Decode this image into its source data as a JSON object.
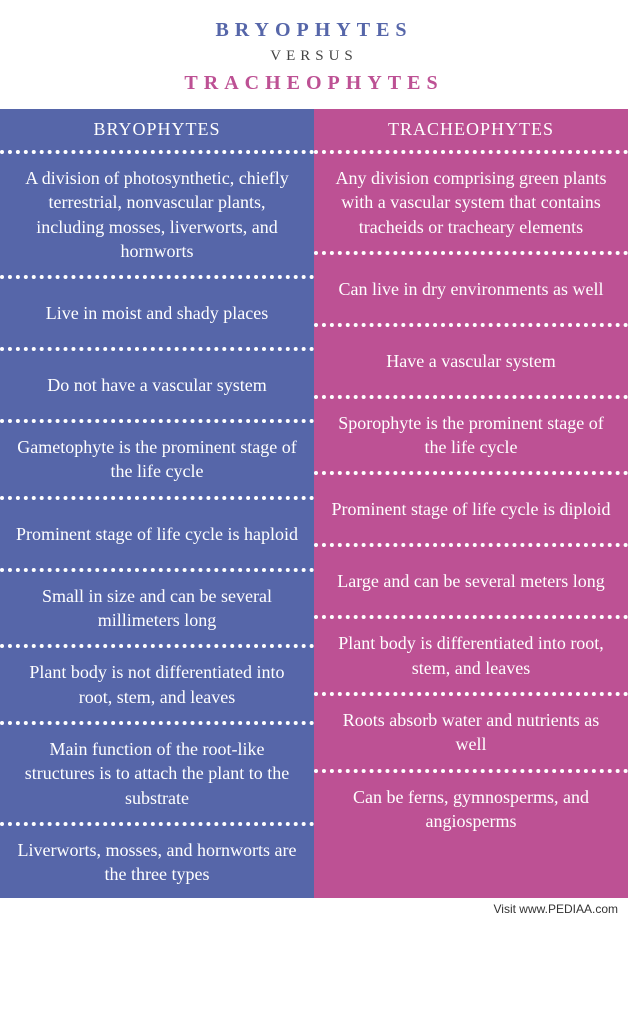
{
  "title": {
    "left_text": "BRYOPHYTES",
    "left_color": "#5666a9",
    "versus": "VERSUS",
    "right_text": "TRACHEOPHYTES",
    "right_color": "#bd5194"
  },
  "columns": {
    "left": {
      "header": "BRYOPHYTES",
      "bg_color": "#5666a9",
      "cells": [
        "A division of photosynthetic, chiefly terrestrial, nonvascular plants, including mosses, liverworts, and hornworts",
        "Live in moist and shady places",
        "Do not have a vascular system",
        "Gametophyte is the prominent stage of the life cycle",
        "Prominent stage of life cycle is haploid",
        "Small in size and can be several millimeters long",
        "Plant body is not differentiated into root, stem, and leaves",
        "Main function of the root-like structures is to attach the plant to the substrate",
        "Liverworts, mosses, and hornworts are the three types"
      ]
    },
    "right": {
      "header": "TRACHEOPHYTES",
      "bg_color": "#bd5194",
      "cells": [
        "Any division comprising green plants with a vascular system that contains tracheids or tracheary elements",
        "Can live in dry environments as well",
        "Have a vascular system",
        "Sporophyte is the prominent stage of the life cycle",
        "Prominent stage of life cycle is diploid",
        "Large and can be several meters long",
        "Plant body is differentiated into root, stem, and leaves",
        "Roots absorb water and nutrients as well",
        "Can be ferns, gymnosperms, and angiosperms"
      ]
    }
  },
  "footer": "Visit www.PEDIAA.com"
}
